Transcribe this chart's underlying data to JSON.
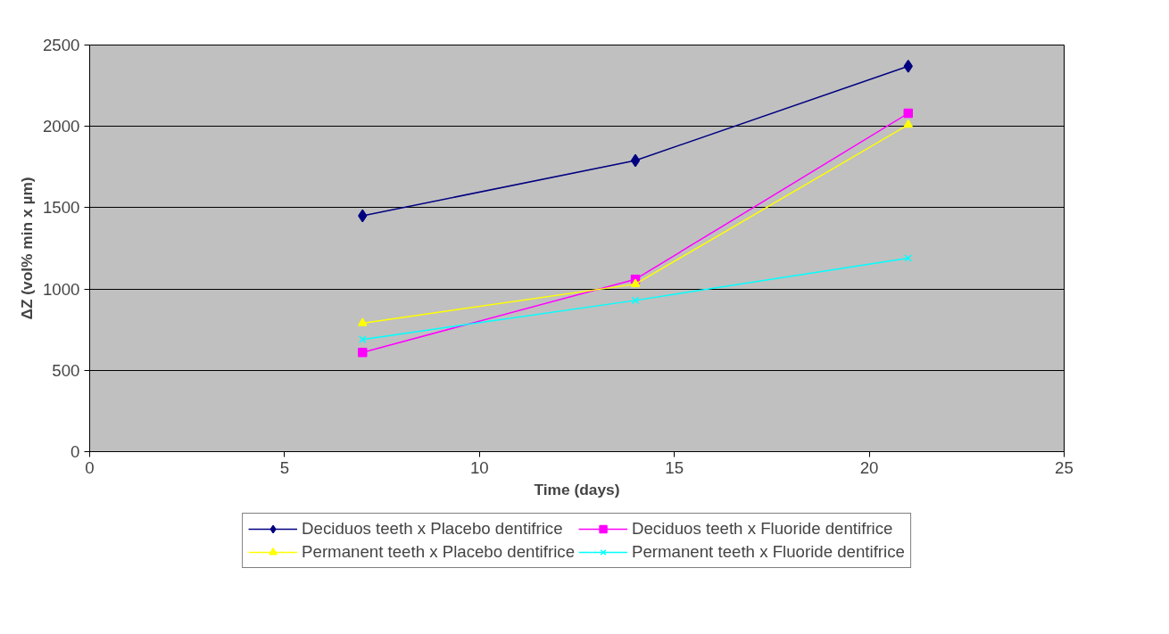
{
  "chart_data": {
    "type": "line",
    "xlabel": "Time (days)",
    "ylabel": "ΔZ (vol% min x µm)",
    "x": [
      7,
      14,
      21
    ],
    "series": [
      {
        "name": "Deciduos teeth x Placebo dentifrice",
        "color": "#000080",
        "marker": "diamond",
        "values": [
          1450,
          1790,
          2370
        ]
      },
      {
        "name": "Deciduos teeth x Fluoride dentifrice",
        "color": "#ff00ff",
        "marker": "square",
        "values": [
          610,
          1060,
          2080
        ]
      },
      {
        "name": "Permanent teeth x Placebo dentifrice",
        "color": "#ffff00",
        "marker": "triangle",
        "values": [
          790,
          1030,
          2010
        ]
      },
      {
        "name": "Permanent teeth x Fluoride dentifrice",
        "color": "#00ffff",
        "marker": "cross",
        "values": [
          690,
          930,
          1190
        ]
      }
    ],
    "xlim": [
      0,
      25
    ],
    "xticks": [
      0,
      5,
      10,
      15,
      20,
      25
    ],
    "ylim": [
      0,
      2500
    ],
    "yticks": [
      0,
      500,
      1000,
      1500,
      2000,
      2500
    ],
    "grid": "y",
    "legend": "bottom",
    "line_style": "solid"
  }
}
